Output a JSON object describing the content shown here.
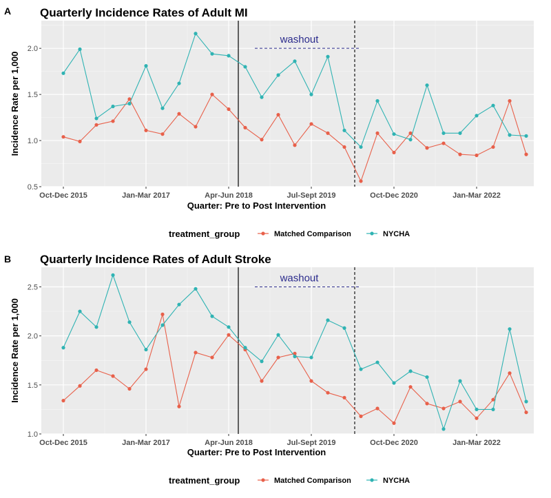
{
  "colors": {
    "matched": "#e8604a",
    "nycha": "#2fb3b3",
    "panel_bg": "#ebebeb",
    "grid_major": "#ffffff",
    "grid_minor": "#f5f5f5",
    "washout_text": "#2b2b8c"
  },
  "legend": {
    "title": "treatment_group",
    "items": [
      "Matched Comparison",
      "NYCHA"
    ]
  },
  "chart_data": [
    {
      "panel": "A",
      "type": "line",
      "title": "Quarterly Incidence Rates of Adult MI",
      "xlabel": "Quarter: Pre to Post Intervention",
      "ylabel": "Incidence Rate per 1,000",
      "ylim": [
        0.5,
        2.3
      ],
      "yticks": [
        "0.5",
        "1.0",
        "1.5",
        "2.0"
      ],
      "xticks": [
        {
          "index": 0,
          "label": "Oct-Dec 2015"
        },
        {
          "index": 5,
          "label": "Jan-Mar 2017"
        },
        {
          "index": 10,
          "label": "Apr-Jun 2018"
        },
        {
          "index": 15,
          "label": "Jul-Sept 2019"
        },
        {
          "index": 20,
          "label": "Oct-Dec 2020"
        },
        {
          "index": 25,
          "label": "Jan-Mar 2022"
        }
      ],
      "intervention_index": 11,
      "washout_end_index": 17,
      "washout_label": "washout",
      "washout_level": 2.0,
      "series": [
        {
          "name": "Matched Comparison",
          "values": [
            1.04,
            0.99,
            1.17,
            1.21,
            1.45,
            1.11,
            1.07,
            1.29,
            1.15,
            1.5,
            1.34,
            1.14,
            1.01,
            1.28,
            0.95,
            1.18,
            1.08,
            0.93,
            0.56,
            1.08,
            0.87,
            1.08,
            0.92,
            0.97,
            0.85,
            0.84,
            0.93,
            1.43,
            0.85
          ]
        },
        {
          "name": "NYCHA",
          "values": [
            1.73,
            1.99,
            1.24,
            1.37,
            1.4,
            1.81,
            1.35,
            1.62,
            2.16,
            1.94,
            1.92,
            1.8,
            1.47,
            1.71,
            1.86,
            1.5,
            1.91,
            1.11,
            0.93,
            1.43,
            1.07,
            1.01,
            1.6,
            1.08,
            1.08,
            1.27,
            1.38,
            1.06,
            1.05
          ]
        }
      ]
    },
    {
      "panel": "B",
      "type": "line",
      "title": "Quarterly Incidence Rates of Adult Stroke",
      "xlabel": "Quarter: Pre to Post Intervention",
      "ylabel": "Incidence Rate per 1,000",
      "ylim": [
        1.0,
        2.7
      ],
      "yticks": [
        "1.0",
        "1.5",
        "2.0",
        "2.5"
      ],
      "xticks": [
        {
          "index": 0,
          "label": "Oct-Dec 2015"
        },
        {
          "index": 5,
          "label": "Jan-Mar 2017"
        },
        {
          "index": 10,
          "label": "Apr-Jun 2018"
        },
        {
          "index": 15,
          "label": "Jul-Sept 2019"
        },
        {
          "index": 20,
          "label": "Oct-Dec 2020"
        },
        {
          "index": 25,
          "label": "Jan-Mar 2022"
        }
      ],
      "intervention_index": 11,
      "washout_end_index": 17,
      "washout_label": "washout",
      "washout_level": 2.5,
      "series": [
        {
          "name": "Matched Comparison",
          "values": [
            1.34,
            1.49,
            1.65,
            1.59,
            1.46,
            1.66,
            2.22,
            1.28,
            1.83,
            1.78,
            2.01,
            1.86,
            1.54,
            1.78,
            1.82,
            1.54,
            1.42,
            1.37,
            1.18,
            1.26,
            1.11,
            1.48,
            1.31,
            1.26,
            1.33,
            1.16,
            1.35,
            1.62,
            1.22
          ]
        },
        {
          "name": "NYCHA",
          "values": [
            1.88,
            2.25,
            2.09,
            2.62,
            2.14,
            1.86,
            2.11,
            2.32,
            2.48,
            2.2,
            2.09,
            1.88,
            1.74,
            2.01,
            1.79,
            1.78,
            2.16,
            2.08,
            1.66,
            1.73,
            1.52,
            1.64,
            1.58,
            1.05,
            1.54,
            1.25,
            1.25,
            2.07,
            1.33
          ]
        }
      ]
    }
  ]
}
